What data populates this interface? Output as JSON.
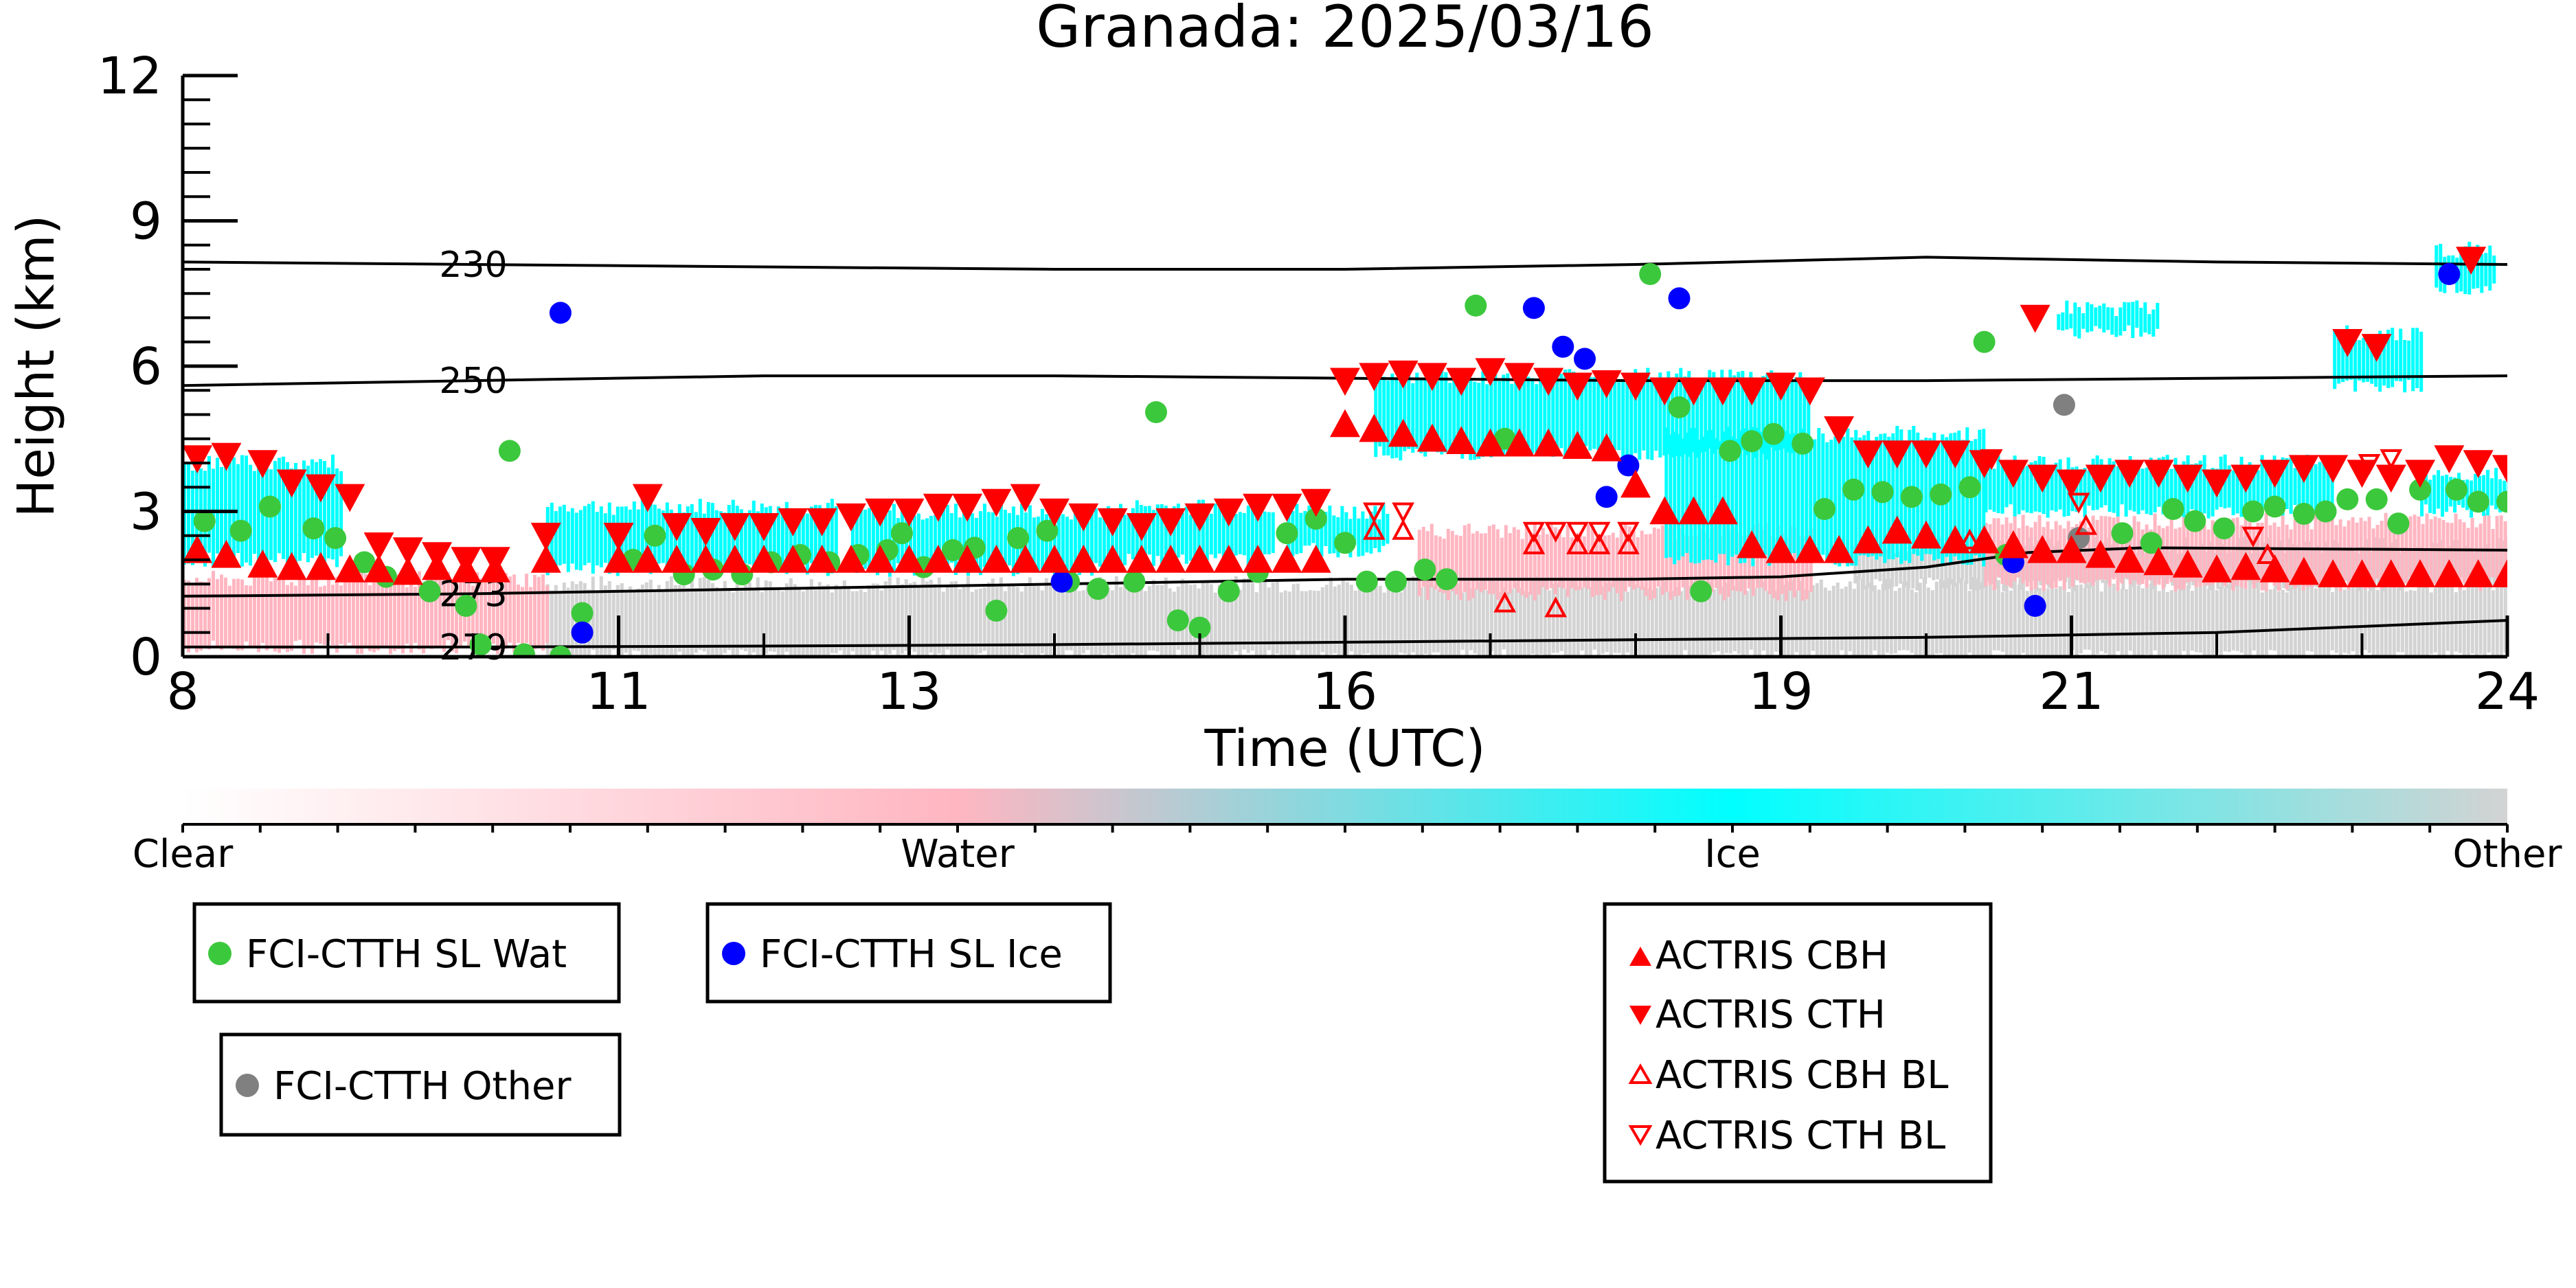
{
  "chart_data": {
    "type": "scatter",
    "title": "Granada: 2025/03/16",
    "xlabel": "Time (UTC)",
    "ylabel": "Height (km)",
    "xlim": [
      8,
      24
    ],
    "ylim": [
      0,
      12
    ],
    "x_ticks": [
      8,
      11,
      13,
      16,
      19,
      21,
      24
    ],
    "x_tick_labels": [
      "8",
      "11",
      "13",
      "16",
      "19",
      "21",
      "24"
    ],
    "y_ticks": [
      0,
      3,
      6,
      9,
      12
    ],
    "y_tick_labels": [
      "0",
      "3",
      "6",
      "9",
      "12"
    ],
    "grid": false,
    "colorbar": {
      "labels": [
        "Clear",
        "Water",
        "Ice",
        "Other"
      ],
      "colors": [
        "#ffffff",
        "#ffb6c1",
        "#00ffff",
        "#d3d3d3"
      ]
    },
    "isotherms": [
      {
        "label": "230",
        "x": [
          8,
          10,
          12,
          14,
          16,
          18,
          20,
          22,
          24
        ],
        "y": [
          8.15,
          8.1,
          8.05,
          8.0,
          8.0,
          8.1,
          8.25,
          8.15,
          8.1
        ]
      },
      {
        "label": "250",
        "x": [
          8,
          10,
          12,
          14,
          16,
          18,
          20,
          22,
          24
        ],
        "y": [
          5.6,
          5.7,
          5.8,
          5.8,
          5.75,
          5.7,
          5.7,
          5.75,
          5.8
        ]
      },
      {
        "label": "273",
        "x": [
          8,
          10,
          12,
          14,
          16,
          18,
          19,
          20,
          20.7,
          21.5,
          24
        ],
        "y": [
          1.25,
          1.3,
          1.4,
          1.5,
          1.6,
          1.6,
          1.65,
          1.85,
          2.15,
          2.25,
          2.2
        ]
      },
      {
        "label": "279",
        "x": [
          8,
          10,
          12,
          14,
          16,
          18,
          20,
          22,
          24
        ],
        "y": [
          0.2,
          0.2,
          0.22,
          0.25,
          0.3,
          0.35,
          0.4,
          0.5,
          0.75
        ]
      }
    ],
    "cloud_layers": [
      {
        "type": "Ice",
        "x": [
          8,
          9.1
        ],
        "y": [
          2.0,
          4.0
        ]
      },
      {
        "type": "Ice",
        "x": [
          10.5,
          12.5
        ],
        "y": [
          1.8,
          3.1
        ]
      },
      {
        "type": "Ice",
        "x": [
          12.6,
          14.5
        ],
        "y": [
          1.8,
          3.0
        ]
      },
      {
        "type": "Ice",
        "x": [
          14.5,
          15.5
        ],
        "y": [
          2.0,
          3.1
        ]
      },
      {
        "type": "Ice",
        "x": [
          15.6,
          16.3
        ],
        "y": [
          2.2,
          3.0
        ]
      },
      {
        "type": "Ice",
        "x": [
          16.2,
          19.2
        ],
        "y": [
          4.2,
          5.8
        ]
      },
      {
        "type": "Ice",
        "x": [
          18.2,
          20.4
        ],
        "y": [
          2.0,
          4.6
        ]
      },
      {
        "type": "Ice",
        "x": [
          20.4,
          22.8
        ],
        "y": [
          3.0,
          4.0
        ]
      },
      {
        "type": "Ice",
        "x": [
          22.8,
          23.4
        ],
        "y": [
          5.6,
          6.7
        ]
      },
      {
        "type": "Ice",
        "x": [
          20.9,
          21.6
        ],
        "y": [
          6.7,
          7.2
        ]
      },
      {
        "type": "Ice",
        "x": [
          23.5,
          23.9
        ],
        "y": [
          7.6,
          8.4
        ]
      },
      {
        "type": "Ice",
        "x": [
          23.4,
          24
        ],
        "y": [
          3.0,
          3.8
        ]
      },
      {
        "type": "Water",
        "x": [
          8,
          10.5
        ],
        "y": [
          0.2,
          1.6
        ]
      },
      {
        "type": "Water",
        "x": [
          16.5,
          19.2
        ],
        "y": [
          1.3,
          2.6
        ]
      },
      {
        "type": "Water",
        "x": [
          20.4,
          24
        ],
        "y": [
          1.5,
          2.8
        ]
      },
      {
        "type": "Other",
        "x": [
          10.5,
          24
        ],
        "y": [
          0.0,
          1.5
        ]
      },
      {
        "type": "Other",
        "x": [
          19.5,
          24
        ],
        "y": [
          1.5,
          2.3
        ]
      }
    ],
    "series": [
      {
        "name": "FCI-CTTH SL Wat",
        "color": "#3cc83c",
        "marker": "circle",
        "x": [
          8.15,
          8.4,
          8.6,
          8.9,
          9.05,
          9.25,
          9.4,
          9.7,
          9.95,
          10.05,
          10.25,
          10.35,
          10.6,
          10.75,
          11.1,
          11.25,
          11.45,
          11.65,
          11.85,
          12.05,
          12.25,
          12.45,
          12.65,
          12.85,
          12.95,
          13.1,
          13.3,
          13.45,
          13.6,
          13.75,
          13.95,
          14.1,
          14.3,
          14.55,
          14.7,
          14.85,
          15.0,
          15.2,
          15.4,
          15.6,
          15.8,
          16.0,
          16.15,
          16.35,
          16.55,
          16.7,
          16.9,
          17.1,
          18.1,
          18.3,
          18.45,
          18.65,
          18.8,
          18.95,
          19.15,
          19.3,
          19.5,
          19.7,
          19.9,
          20.1,
          20.3,
          20.4,
          20.55,
          21.35,
          21.55,
          21.7,
          21.85,
          22.05,
          22.25,
          22.4,
          22.6,
          22.75,
          22.9,
          23.1,
          23.25,
          23.4,
          23.65,
          23.8,
          24.0
        ],
        "y": [
          2.8,
          2.6,
          3.1,
          2.65,
          2.45,
          1.95,
          1.65,
          1.35,
          1.05,
          0.25,
          4.25,
          0.05,
          0.0,
          0.9,
          2.0,
          2.5,
          1.7,
          1.8,
          1.7,
          1.95,
          2.1,
          1.95,
          2.1,
          2.2,
          2.55,
          1.85,
          2.2,
          2.25,
          0.95,
          2.45,
          2.6,
          1.55,
          1.4,
          1.55,
          5.05,
          0.75,
          0.6,
          1.35,
          1.75,
          2.55,
          2.85,
          2.35,
          1.55,
          1.55,
          1.8,
          1.6,
          7.25,
          4.5,
          7.9,
          5.15,
          1.35,
          4.25,
          4.45,
          4.6,
          4.4,
          3.05,
          3.45,
          3.4,
          3.3,
          3.35,
          3.5,
          6.5,
          2.1,
          2.55,
          2.35,
          3.05,
          2.8,
          2.65,
          3.0,
          3.1,
          2.95,
          3.0,
          3.25,
          3.25,
          2.75,
          3.45,
          3.45,
          3.2,
          3.2
        ],
        "_note": ""
      },
      {
        "name": "FCI-CTTH SL Ice",
        "color": "#0000ff",
        "marker": "circle",
        "x": [
          10.6,
          10.75,
          14.05,
          17.3,
          17.5,
          17.65,
          17.8,
          17.95,
          18.3,
          20.6,
          20.75,
          23.6
        ],
        "y": [
          7.1,
          0.5,
          1.55,
          7.2,
          6.4,
          6.15,
          3.3,
          3.95,
          7.4,
          1.95,
          1.05,
          7.9
        ]
      },
      {
        "name": "FCI-CTTH Other",
        "color": "#808080",
        "marker": "circle",
        "x": [
          20.95,
          21.05
        ],
        "y": [
          5.2,
          2.45
        ]
      },
      {
        "name": "ACTRIS CBH",
        "color": "#ff0000",
        "marker": "triangle-up-filled",
        "x": [
          8.1,
          8.3,
          8.55,
          8.75,
          8.95,
          9.15,
          9.35,
          9.55,
          9.75,
          9.95,
          10.15,
          10.5,
          11.0,
          11.2,
          11.4,
          11.6,
          11.8,
          12.0,
          12.2,
          12.4,
          12.6,
          12.8,
          13.0,
          13.2,
          13.4,
          13.6,
          13.8,
          14.0,
          14.2,
          14.4,
          14.6,
          14.8,
          15.0,
          15.2,
          15.4,
          15.6,
          15.8,
          16.0,
          16.2,
          16.4,
          16.6,
          16.8,
          17.0,
          17.2,
          17.4,
          17.6,
          17.8,
          18.0,
          18.2,
          18.4,
          18.6,
          18.8,
          19.0,
          19.2,
          19.4,
          19.6,
          19.8,
          20.0,
          20.2,
          20.4,
          20.6,
          20.8,
          21.0,
          21.2,
          21.4,
          21.6,
          21.8,
          22.0,
          22.2,
          22.4,
          22.6,
          22.8,
          23.0,
          23.2,
          23.4,
          23.6,
          23.8,
          24.0
        ],
        "y": [
          2.2,
          2.1,
          1.9,
          1.85,
          1.85,
          1.8,
          1.8,
          1.75,
          1.85,
          1.8,
          1.8,
          2.0,
          2.0,
          2.0,
          2.0,
          2.0,
          2.0,
          2.0,
          2.0,
          2.0,
          2.0,
          2.0,
          2.0,
          2.0,
          2.0,
          2.0,
          2.0,
          2.0,
          2.0,
          2.0,
          2.0,
          2.0,
          2.0,
          2.0,
          2.0,
          2.0,
          2.0,
          4.8,
          4.7,
          4.6,
          4.5,
          4.45,
          4.4,
          4.4,
          4.4,
          4.35,
          4.3,
          3.55,
          3.0,
          3.0,
          3.0,
          2.3,
          2.2,
          2.2,
          2.2,
          2.4,
          2.6,
          2.5,
          2.4,
          2.4,
          2.3,
          2.2,
          2.2,
          2.1,
          2.0,
          1.95,
          1.9,
          1.8,
          1.85,
          1.8,
          1.75,
          1.7,
          1.7,
          1.7,
          1.7,
          1.7,
          1.7,
          1.7
        ]
      },
      {
        "name": "ACTRIS CTH",
        "color": "#ff0000",
        "marker": "triangle-down-filled",
        "x": [
          8.1,
          8.3,
          8.55,
          8.75,
          8.95,
          9.15,
          9.35,
          9.55,
          9.75,
          9.95,
          10.15,
          10.5,
          11.0,
          11.2,
          11.4,
          11.6,
          11.8,
          12.0,
          12.2,
          12.4,
          12.6,
          12.8,
          13.0,
          13.2,
          13.4,
          13.6,
          13.8,
          14.0,
          14.2,
          14.4,
          14.6,
          14.8,
          15.0,
          15.2,
          15.4,
          15.6,
          15.8,
          16.0,
          16.2,
          16.4,
          16.6,
          16.8,
          17.0,
          17.2,
          17.4,
          17.6,
          17.8,
          18.0,
          18.2,
          18.4,
          18.6,
          18.8,
          19.0,
          19.2,
          19.4,
          19.6,
          19.8,
          20.0,
          20.2,
          20.4,
          20.6,
          20.8,
          21.0,
          21.2,
          21.4,
          21.6,
          21.8,
          22.0,
          22.2,
          22.4,
          22.6,
          22.8,
          23.0,
          23.2,
          23.4,
          23.6,
          23.8,
          24.0,
          20.75,
          22.9,
          23.1,
          23.75
        ],
        "y": [
          4.1,
          4.15,
          4.0,
          3.6,
          3.5,
          3.3,
          2.3,
          2.2,
          2.1,
          2.0,
          2.0,
          2.5,
          2.5,
          3.3,
          2.7,
          2.6,
          2.7,
          2.7,
          2.8,
          2.8,
          2.9,
          3.0,
          3.0,
          3.1,
          3.1,
          3.2,
          3.3,
          3.0,
          2.9,
          2.8,
          2.7,
          2.8,
          2.9,
          3.0,
          3.1,
          3.1,
          3.2,
          5.7,
          5.8,
          5.85,
          5.8,
          5.7,
          5.9,
          5.8,
          5.7,
          5.6,
          5.65,
          5.6,
          5.5,
          5.5,
          5.5,
          5.5,
          5.6,
          5.5,
          4.7,
          4.2,
          4.2,
          4.2,
          4.2,
          4.0,
          3.8,
          3.7,
          3.6,
          3.7,
          3.8,
          3.8,
          3.7,
          3.6,
          3.7,
          3.8,
          3.9,
          3.9,
          3.8,
          3.7,
          3.8,
          4.1,
          4.0,
          3.9,
          7.0,
          6.5,
          6.4,
          8.2
        ]
      },
      {
        "name": "ACTRIS CBH BL",
        "color": "#ff0000",
        "marker": "triangle-up-open",
        "x": [
          17.1,
          17.3,
          17.45,
          17.6,
          17.75,
          17.95,
          16.2,
          16.4,
          20.3,
          21.1,
          22.2,
          22.35,
          23.0
        ],
        "y": [
          1.1,
          2.3,
          1.0,
          2.3,
          2.3,
          2.3,
          2.6,
          2.6,
          2.4,
          2.7,
          1.8,
          2.1,
          1.7
        ]
      },
      {
        "name": "ACTRIS CTH BL",
        "color": "#ff0000",
        "marker": "triangle-down-open",
        "x": [
          16.2,
          16.4,
          17.3,
          17.45,
          17.6,
          17.75,
          17.95,
          20.2,
          20.45,
          21.05,
          22.25,
          23.05,
          23.2
        ],
        "y": [
          3.0,
          3.0,
          2.6,
          2.6,
          2.6,
          2.6,
          2.6,
          4.2,
          4.1,
          3.2,
          2.5,
          4.0,
          4.1
        ]
      }
    ]
  },
  "legend": {
    "box1": {
      "label": "FCI-CTTH SL Wat"
    },
    "box2": {
      "label": "FCI-CTTH SL Ice"
    },
    "box3": {
      "label": "FCI-CTTH Other"
    },
    "box4": {
      "labels": [
        "ACTRIS CBH",
        "ACTRIS CTH",
        "ACTRIS CBH BL",
        "ACTRIS CTH BL"
      ]
    }
  }
}
